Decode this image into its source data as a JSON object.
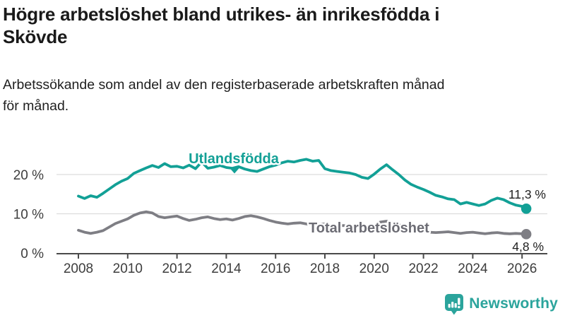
{
  "header": {
    "title_lines": [
      "Högre arbetslöshet bland utrikes- än inrikesfödda i",
      "Skövde"
    ],
    "subtitle_lines": [
      "Arbetssökande som andel av den registerbaserade arbetskraften månad",
      "för månad."
    ]
  },
  "chart_data": {
    "type": "line",
    "title": "Högre arbetslöshet bland utrikes- än inrikesfödda i Skövde",
    "subtitle": "Arbetssökande som andel av den registerbaserade arbetskraften månad för månad.",
    "xlabel": "",
    "ylabel": "",
    "unit": "%",
    "grid": "horizontal",
    "x_range": [
      2008,
      2026.17
    ],
    "ylim": [
      0,
      26
    ],
    "x_ticks": [
      2008,
      2010,
      2012,
      2014,
      2016,
      2018,
      2020,
      2022,
      2024,
      2026
    ],
    "x_tick_labels": [
      "2008",
      "2010",
      "2012",
      "2014",
      "2016",
      "2018",
      "2020",
      "2022",
      "2024",
      "2026"
    ],
    "y_ticks": [
      0,
      10,
      20
    ],
    "y_tick_labels": [
      "0 %",
      "10 %",
      "20 %"
    ],
    "series": [
      {
        "id": "utlandsfodda",
        "name": "Utlandsfödda",
        "color": "#12a096",
        "label_color": "#12a096",
        "start": 2008,
        "step": 0.25,
        "values": [
          14.5,
          13.9,
          14.6,
          14.2,
          15.2,
          16.3,
          17.4,
          18.3,
          19.0,
          20.3,
          21.0,
          21.7,
          22.3,
          21.8,
          22.8,
          22.0,
          22.1,
          21.7,
          22.4,
          21.5,
          23.2,
          21.6,
          21.9,
          22.3,
          21.8,
          21.6,
          22.0,
          21.4,
          21.0,
          20.8,
          21.4,
          22.0,
          22.4,
          23.0,
          23.4,
          23.2,
          23.6,
          23.9,
          23.4,
          23.6,
          21.5,
          21.0,
          20.8,
          20.6,
          20.4,
          20.0,
          19.3,
          19.0,
          20.1,
          21.4,
          22.5,
          21.2,
          20.0,
          18.6,
          17.5,
          16.8,
          16.2,
          15.5,
          14.7,
          14.3,
          13.8,
          13.6,
          12.5,
          12.9,
          12.5,
          12.1,
          12.5,
          13.4,
          14.0,
          13.6,
          12.8,
          12.2,
          11.9
        ],
        "end": {
          "x": 2026.17,
          "value": 11.3,
          "label": "11,3 %"
        }
      },
      {
        "id": "total",
        "name": "Total arbetslöshet",
        "color": "#7e7e84",
        "label_color": "#6c6c74",
        "start": 2008,
        "step": 0.25,
        "values": [
          5.8,
          5.3,
          5.0,
          5.3,
          5.7,
          6.6,
          7.5,
          8.1,
          8.7,
          9.6,
          10.2,
          10.5,
          10.2,
          9.3,
          9.0,
          9.2,
          9.4,
          8.8,
          8.3,
          8.6,
          9.0,
          9.2,
          8.8,
          8.5,
          8.7,
          8.4,
          8.8,
          9.3,
          9.5,
          9.2,
          8.8,
          8.3,
          7.9,
          7.6,
          7.4,
          7.6,
          7.7,
          7.4,
          7.1,
          7.3,
          7.4,
          7.1,
          6.9,
          7.0,
          6.8,
          6.6,
          6.5,
          6.7,
          7.1,
          7.9,
          8.1,
          7.7,
          7.2,
          6.6,
          6.1,
          5.8,
          5.5,
          5.3,
          5.2,
          5.3,
          5.4,
          5.2,
          5.0,
          5.2,
          5.3,
          5.1,
          4.9,
          5.1,
          5.2,
          5.0,
          4.9,
          5.0,
          4.9
        ],
        "end": {
          "x": 2026.17,
          "value": 4.8,
          "label": "4,8 %"
        }
      }
    ],
    "colors": {
      "axis": "#4a4a4a",
      "gridline": "#dcdcdc",
      "tick_label": "#3d3d3d"
    }
  },
  "footer": {
    "brand": "Newsworthy",
    "brand_color": "#2ba49c"
  }
}
